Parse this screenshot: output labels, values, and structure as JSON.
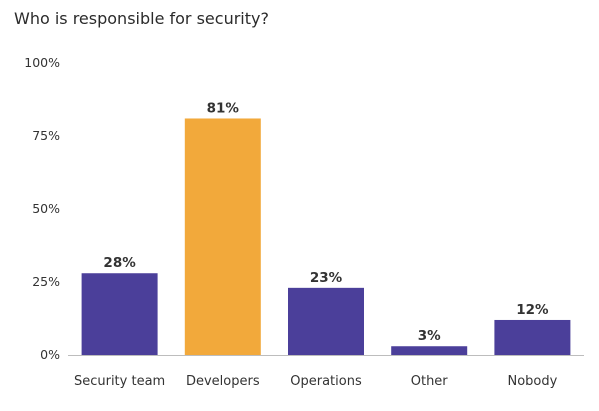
{
  "chart_data": {
    "type": "bar",
    "title": "Who is responsible for security?",
    "categories": [
      "Security team",
      "Developers",
      "Operations",
      "Other",
      "Nobody"
    ],
    "values": [
      28,
      81,
      23,
      3,
      12
    ],
    "data_labels": [
      "28%",
      "81%",
      "23%",
      "3%",
      "12%"
    ],
    "ylim": [
      0,
      100
    ],
    "yticks": [
      0,
      25,
      50,
      75,
      100
    ],
    "ytick_labels": [
      "0%",
      "25%",
      "50%",
      "75%",
      "100%"
    ],
    "xlabel": "",
    "ylabel": "",
    "grid": false,
    "legend": "none",
    "colors": {
      "default": "#4b3f9a",
      "highlight": "#f2a93b",
      "highlight_category": "Developers",
      "axis": "#bdbdbd"
    }
  }
}
